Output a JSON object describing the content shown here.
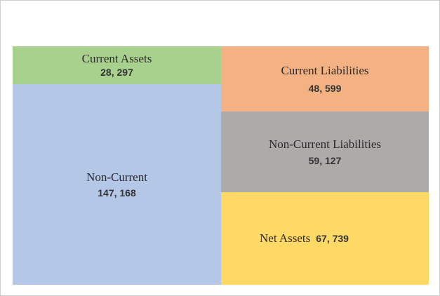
{
  "chart_data": {
    "type": "treemap",
    "title": "",
    "groups": [
      {
        "side": "assets",
        "items": [
          {
            "label": "Current Assets",
            "value": 28297,
            "value_text": "28, 297",
            "color": "#a9d18e"
          },
          {
            "label": "Non-Current",
            "value": 147168,
            "value_text": "147, 168",
            "color": "#b4c7e7"
          }
        ]
      },
      {
        "side": "liabilities-and-equity",
        "items": [
          {
            "label": "Current Liabilities",
            "value": 48599,
            "value_text": "48, 599",
            "color": "#f4b183"
          },
          {
            "label": "Non-Current Liabilities",
            "value": 59127,
            "value_text": "59, 127",
            "color": "#aeaaaa"
          },
          {
            "label": "Net Assets",
            "value": 67739,
            "value_text": "67, 739",
            "color": "#ffd966"
          }
        ]
      }
    ]
  }
}
